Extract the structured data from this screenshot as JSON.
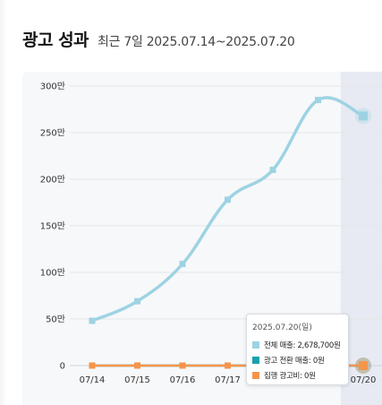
{
  "header": {
    "title": "광고 성과",
    "subtitle": "최근 7일 2025.07.14~2025.07.20"
  },
  "chart_data": {
    "type": "line",
    "x": [
      "07/14",
      "07/15",
      "07/16",
      "07/17",
      "07/18",
      "07/19",
      "07/20"
    ],
    "y_ticks": [
      "0",
      "50만",
      "100만",
      "150만",
      "200만",
      "250만",
      "300만"
    ],
    "ylim": [
      0,
      3000000
    ],
    "grid": true,
    "highlighted_category": "07/20",
    "series": [
      {
        "name": "전체 매출",
        "color": "#9dd3e3",
        "values": [
          480000,
          690000,
          1090000,
          1780000,
          2100000,
          2850000,
          2678700
        ]
      },
      {
        "name": "광고 전환 매출",
        "color": "#1a9fad",
        "values": [
          0,
          0,
          0,
          0,
          0,
          0,
          0
        ]
      },
      {
        "name": "집행 광고비",
        "color": "#f5954a",
        "values": [
          0,
          0,
          0,
          0,
          0,
          0,
          0
        ]
      }
    ]
  },
  "tooltip": {
    "date": "2025.07.20(일)",
    "rows": [
      {
        "label": "전체 매출: 2,678,700원",
        "color": "#9dd3e3"
      },
      {
        "label": "광고 전환 매출: 0원",
        "color": "#1a9fad"
      },
      {
        "label": "집행 광고비: 0원",
        "color": "#f5954a"
      }
    ]
  }
}
